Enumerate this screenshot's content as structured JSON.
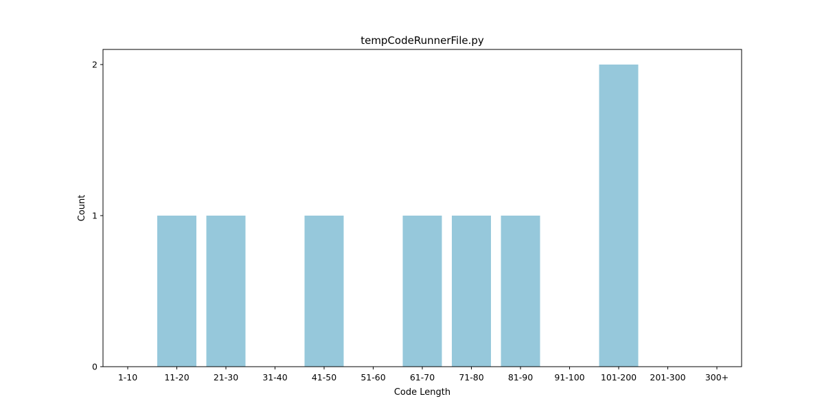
{
  "chart_data": {
    "type": "bar",
    "title": "tempCodeRunnerFile.py",
    "xlabel": "Code Length",
    "ylabel": "Count",
    "categories": [
      "1-10",
      "11-20",
      "21-30",
      "31-40",
      "41-50",
      "51-60",
      "61-70",
      "71-80",
      "81-90",
      "91-100",
      "101-200",
      "201-300",
      "300+"
    ],
    "values": [
      0,
      1,
      1,
      0,
      1,
      0,
      1,
      1,
      1,
      0,
      2,
      0,
      0
    ],
    "ylim": [
      0,
      2.1
    ],
    "yticks": [
      "0",
      "1",
      "2"
    ],
    "grid": false,
    "legend": false,
    "bar_color": "#96c8db"
  }
}
